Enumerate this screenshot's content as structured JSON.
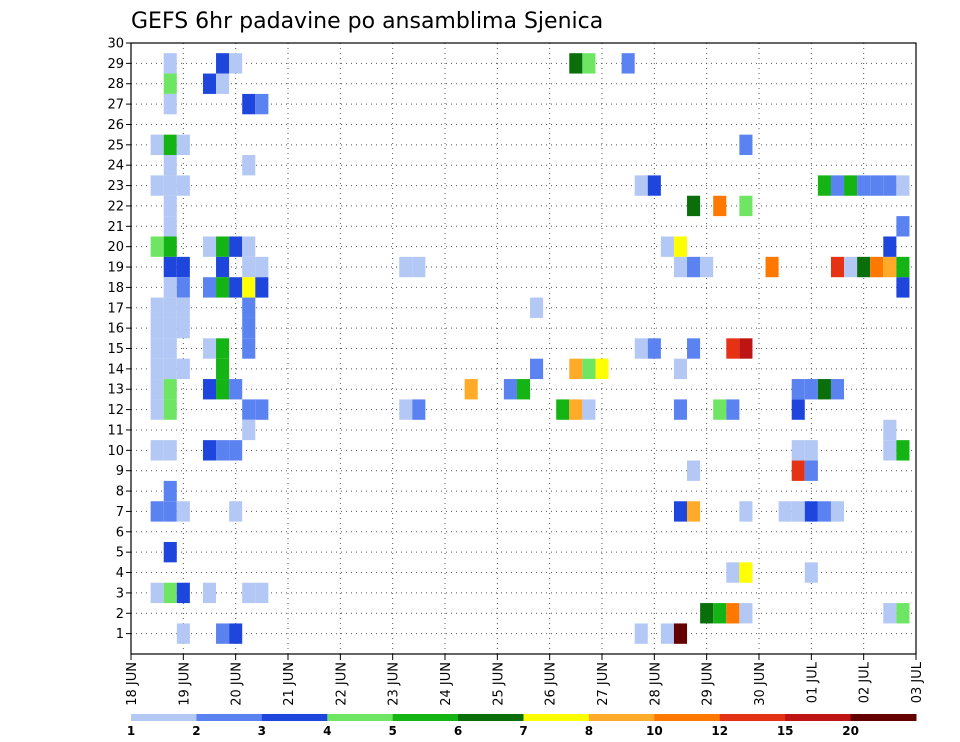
{
  "chart_data": {
    "type": "heatmap",
    "title": "GEFS 6hr padavine po ansamblima Sjenica",
    "x_ticks": [
      "18 JUN",
      "19 JUN",
      "20 JUN",
      "21 JUN",
      "22 JUN",
      "23 JUN",
      "24 JUN",
      "25 JUN",
      "26 JUN",
      "27 JUN",
      "28 JUN",
      "29 JUN",
      "30 JUN",
      "01 JUL",
      "02 JUL",
      "03 JUL"
    ],
    "y_ticks": [
      1,
      2,
      3,
      4,
      5,
      6,
      7,
      8,
      9,
      10,
      11,
      12,
      13,
      14,
      15,
      16,
      17,
      18,
      19,
      20,
      21,
      22,
      23,
      24,
      25,
      26,
      27,
      28,
      29,
      30
    ],
    "xlim_days": [
      0,
      15
    ],
    "ylim": [
      0,
      30
    ],
    "time_step_hours": 6,
    "grid": true,
    "legend_position": "bottom",
    "legend": {
      "labels": [
        "1",
        "2",
        "3",
        "4",
        "5",
        "6",
        "7",
        "8",
        "10",
        "12",
        "15",
        "20"
      ],
      "colors": [
        "#b4c8f5",
        "#5a82f0",
        "#1e46dc",
        "#6ee664",
        "#14b414",
        "#0a6e0a",
        "#ffff00",
        "#ffaa28",
        "#ff7800",
        "#e63214",
        "#be1414",
        "#640000"
      ]
    },
    "cells_note": "each cell: [day offset from 18 JUN, ensemble member, color class 0-11]",
    "cells": [
      [
        0.75,
        29,
        0
      ],
      [
        0.75,
        28,
        3
      ],
      [
        0.75,
        27,
        0
      ],
      [
        0.5,
        25,
        0
      ],
      [
        0.75,
        25,
        4
      ],
      [
        1.0,
        25,
        0
      ],
      [
        0.75,
        24,
        0
      ],
      [
        0.5,
        23,
        0
      ],
      [
        0.75,
        23,
        0
      ],
      [
        1.0,
        23,
        0
      ],
      [
        0.75,
        22,
        0
      ],
      [
        0.75,
        21,
        0
      ],
      [
        0.5,
        20,
        3
      ],
      [
        0.75,
        20,
        4
      ],
      [
        0.75,
        19,
        2
      ],
      [
        1.0,
        19,
        2
      ],
      [
        0.75,
        18,
        0
      ],
      [
        1.0,
        18,
        1
      ],
      [
        0.5,
        17,
        0
      ],
      [
        0.75,
        17,
        0
      ],
      [
        1.0,
        17,
        0
      ],
      [
        0.5,
        16,
        0
      ],
      [
        0.75,
        16,
        0
      ],
      [
        1.0,
        16,
        0
      ],
      [
        0.5,
        15,
        0
      ],
      [
        0.75,
        15,
        0
      ],
      [
        0.5,
        14,
        0
      ],
      [
        0.75,
        14,
        0
      ],
      [
        1.0,
        14,
        0
      ],
      [
        0.5,
        13,
        0
      ],
      [
        0.75,
        13,
        3
      ],
      [
        0.5,
        12,
        0
      ],
      [
        0.75,
        12,
        3
      ],
      [
        0.5,
        10,
        0
      ],
      [
        0.75,
        10,
        0
      ],
      [
        0.75,
        8,
        1
      ],
      [
        0.5,
        7,
        1
      ],
      [
        0.75,
        7,
        1
      ],
      [
        1.0,
        7,
        0
      ],
      [
        0.75,
        5,
        2
      ],
      [
        0.5,
        3,
        0
      ],
      [
        0.75,
        3,
        3
      ],
      [
        1.0,
        3,
        2
      ],
      [
        1.0,
        1,
        0
      ],
      [
        1.75,
        29,
        2
      ],
      [
        2.0,
        29,
        0
      ],
      [
        1.5,
        28,
        2
      ],
      [
        1.75,
        28,
        0
      ],
      [
        2.25,
        27,
        2
      ],
      [
        2.5,
        27,
        1
      ],
      [
        2.25,
        24,
        0
      ],
      [
        1.5,
        20,
        0
      ],
      [
        1.75,
        20,
        4
      ],
      [
        2.0,
        20,
        2
      ],
      [
        2.25,
        20,
        0
      ],
      [
        1.75,
        19,
        2
      ],
      [
        2.25,
        19,
        0
      ],
      [
        2.5,
        19,
        0
      ],
      [
        1.5,
        18,
        1
      ],
      [
        1.75,
        18,
        4
      ],
      [
        2.0,
        18,
        2
      ],
      [
        2.25,
        18,
        6
      ],
      [
        2.5,
        18,
        2
      ],
      [
        2.25,
        17,
        1
      ],
      [
        2.25,
        16,
        1
      ],
      [
        2.25,
        15,
        1
      ],
      [
        1.5,
        15,
        0
      ],
      [
        1.75,
        15,
        4
      ],
      [
        1.75,
        14,
        4
      ],
      [
        1.5,
        13,
        2
      ],
      [
        1.75,
        13,
        4
      ],
      [
        2.0,
        13,
        1
      ],
      [
        2.25,
        12,
        1
      ],
      [
        2.5,
        12,
        1
      ],
      [
        2.25,
        11,
        0
      ],
      [
        1.5,
        10,
        2
      ],
      [
        1.75,
        10,
        1
      ],
      [
        2.0,
        10,
        1
      ],
      [
        2.0,
        7,
        0
      ],
      [
        1.5,
        3,
        0
      ],
      [
        2.25,
        3,
        0
      ],
      [
        2.5,
        3,
        0
      ],
      [
        1.75,
        1,
        1
      ],
      [
        2.0,
        1,
        2
      ],
      [
        5.25,
        19,
        0
      ],
      [
        5.5,
        19,
        0
      ],
      [
        5.25,
        12,
        0
      ],
      [
        5.5,
        12,
        1
      ],
      [
        6.5,
        13,
        7
      ],
      [
        7.75,
        17,
        0
      ],
      [
        7.25,
        13,
        1
      ],
      [
        7.5,
        13,
        4
      ],
      [
        7.75,
        14,
        1
      ],
      [
        8.25,
        12,
        4
      ],
      [
        8.5,
        12,
        7
      ],
      [
        8.75,
        12,
        0
      ],
      [
        8.5,
        14,
        7
      ],
      [
        8.75,
        14,
        3
      ],
      [
        9.0,
        14,
        6
      ],
      [
        8.5,
        29,
        5
      ],
      [
        8.75,
        29,
        3
      ],
      [
        9.5,
        29,
        1
      ],
      [
        9.75,
        23,
        0
      ],
      [
        10.0,
        23,
        2
      ],
      [
        9.75,
        15,
        0
      ],
      [
        10.0,
        15,
        1
      ],
      [
        9.75,
        1,
        0
      ],
      [
        10.25,
        20,
        0
      ],
      [
        10.5,
        20,
        6
      ],
      [
        10.5,
        19,
        0
      ],
      [
        10.75,
        19,
        1
      ],
      [
        11.0,
        19,
        0
      ],
      [
        10.5,
        14,
        0
      ],
      [
        10.5,
        12,
        1
      ],
      [
        10.75,
        15,
        1
      ],
      [
        10.75,
        22,
        5
      ],
      [
        11.25,
        22,
        8
      ],
      [
        11.75,
        22,
        3
      ],
      [
        10.5,
        7,
        2
      ],
      [
        10.75,
        7,
        7
      ],
      [
        10.75,
        9,
        0
      ],
      [
        10.25,
        1,
        0
      ],
      [
        10.5,
        1,
        11
      ],
      [
        11.0,
        2,
        5
      ],
      [
        11.25,
        2,
        4
      ],
      [
        11.5,
        2,
        8
      ],
      [
        11.75,
        2,
        0
      ],
      [
        11.25,
        12,
        3
      ],
      [
        11.5,
        12,
        1
      ],
      [
        11.75,
        25,
        1
      ],
      [
        11.5,
        15,
        9
      ],
      [
        11.75,
        15,
        10
      ],
      [
        11.5,
        4,
        0
      ],
      [
        11.75,
        4,
        6
      ],
      [
        11.75,
        7,
        0
      ],
      [
        12.25,
        19,
        8
      ],
      [
        12.5,
        7,
        0
      ],
      [
        12.75,
        7,
        0
      ],
      [
        13.0,
        7,
        2
      ],
      [
        13.25,
        7,
        1
      ],
      [
        13.5,
        7,
        0
      ],
      [
        12.75,
        10,
        0
      ],
      [
        13.0,
        10,
        0
      ],
      [
        12.75,
        12,
        2
      ],
      [
        12.75,
        9,
        9
      ],
      [
        13.0,
        9,
        1
      ],
      [
        12.75,
        13,
        1
      ],
      [
        13.0,
        13,
        1
      ],
      [
        13.25,
        13,
        5
      ],
      [
        13.5,
        13,
        1
      ],
      [
        13.0,
        4,
        0
      ],
      [
        13.25,
        23,
        4
      ],
      [
        13.5,
        23,
        1
      ],
      [
        13.75,
        23,
        4
      ],
      [
        14.0,
        23,
        1
      ],
      [
        14.25,
        23,
        1
      ],
      [
        14.5,
        23,
        1
      ],
      [
        14.75,
        23,
        0
      ],
      [
        13.5,
        19,
        9
      ],
      [
        13.75,
        19,
        0
      ],
      [
        14.0,
        19,
        5
      ],
      [
        14.25,
        19,
        8
      ],
      [
        14.5,
        19,
        7
      ],
      [
        14.75,
        19,
        4
      ],
      [
        14.5,
        20,
        2
      ],
      [
        14.75,
        21,
        1
      ],
      [
        14.75,
        18,
        2
      ],
      [
        14.5,
        11,
        0
      ],
      [
        14.5,
        10,
        0
      ],
      [
        14.75,
        10,
        4
      ],
      [
        14.5,
        2,
        0
      ],
      [
        14.75,
        2,
        3
      ]
    ]
  }
}
